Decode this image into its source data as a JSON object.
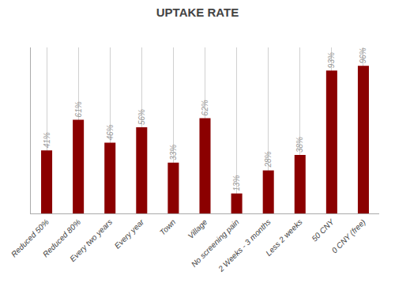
{
  "chart_data": {
    "type": "bar",
    "title": "UPTAKE RATE",
    "categories": [
      "Reduced 50%",
      "Reduced 80%",
      "Every two years",
      "Every year",
      "Town",
      "Village",
      "No screening pain",
      "2 Weeks - 3 months",
      "Less 2 weeks",
      "50 CNY",
      "0 CNY (free)"
    ],
    "values": [
      41,
      61,
      46,
      56,
      33,
      62,
      13,
      28,
      38,
      93,
      96
    ],
    "value_labels": [
      "41%",
      "61%",
      "46%",
      "56%",
      "33%",
      "62%",
      "13%",
      "28%",
      "38%",
      "93%",
      "96%"
    ],
    "data_labels": true,
    "color": "#8B0000",
    "ylim": [
      0,
      108
    ],
    "yticks": [],
    "tick_labels": "x",
    "grid": true
  }
}
